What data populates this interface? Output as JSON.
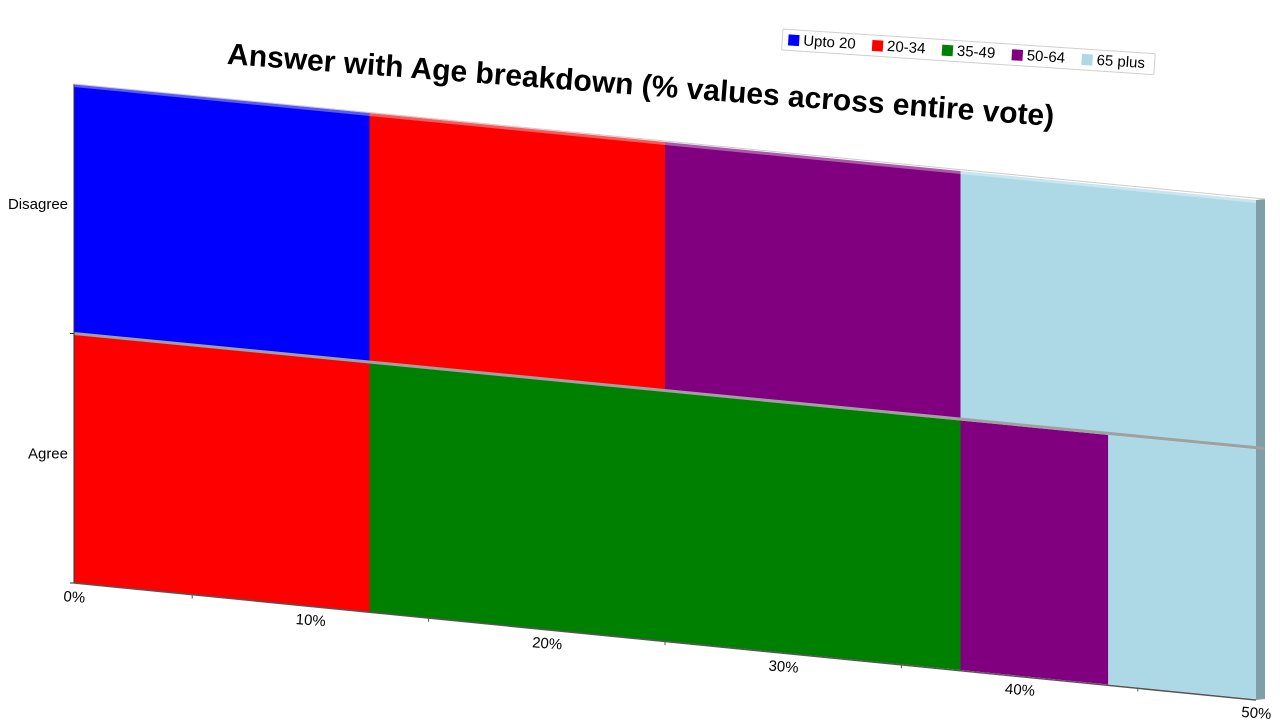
{
  "chart_data": {
    "type": "bar",
    "orientation": "horizontal",
    "stacked": true,
    "title": "Answer with Age breakdown (% values across entire vote)",
    "xlabel": "",
    "ylabel": "",
    "xlim": [
      0,
      50
    ],
    "x_ticks": [
      "0%",
      "10%",
      "20%",
      "30%",
      "40%",
      "50%"
    ],
    "categories": [
      "Disagree",
      "Agree"
    ],
    "series": [
      {
        "name": "Upto 20",
        "color": "#0000ff",
        "values": [
          12.5,
          0
        ]
      },
      {
        "name": "20-34",
        "color": "#ff0000",
        "values": [
          12.5,
          12.5
        ]
      },
      {
        "name": "35-49",
        "color": "#008000",
        "values": [
          0,
          25
        ]
      },
      {
        "name": "50-64",
        "color": "#800080",
        "values": [
          12.5,
          6.25
        ]
      },
      {
        "name": "65 plus",
        "color": "#add8e6",
        "values": [
          12.5,
          6.25
        ]
      }
    ],
    "legend_position": "top-right",
    "grid": false,
    "style": "3d"
  }
}
